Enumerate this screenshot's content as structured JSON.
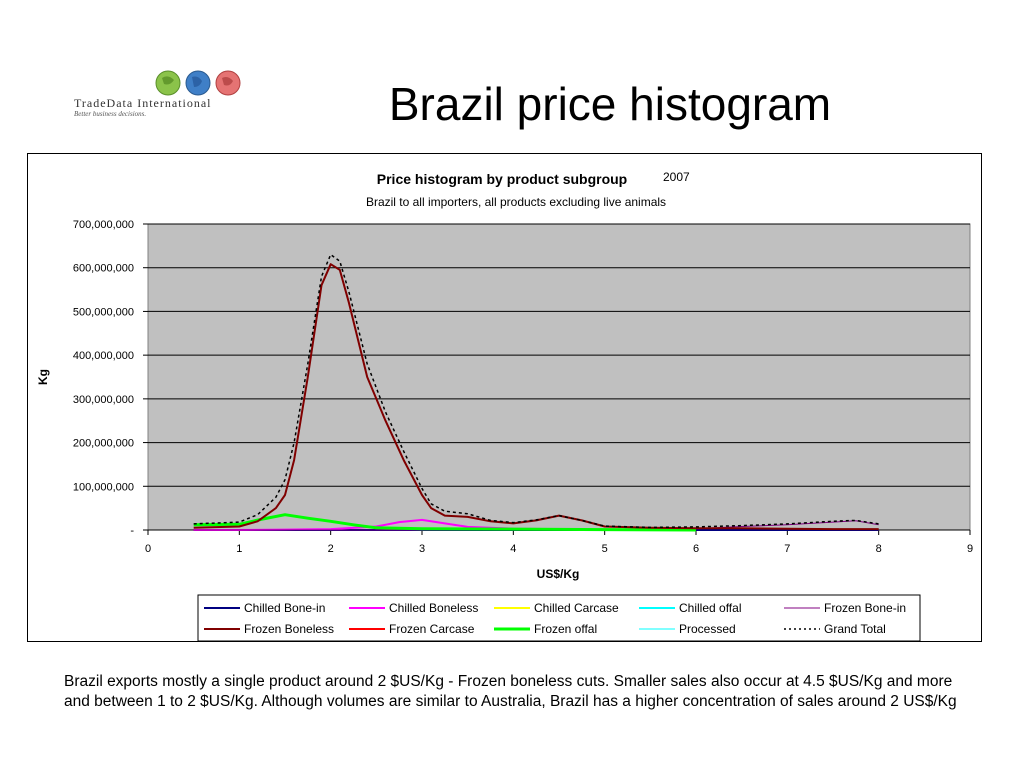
{
  "header": {
    "title": "Brazil price histogram",
    "logo": {
      "name": "TradeData International",
      "tagline": "Better business decisions.",
      "icon": "globe-icon"
    }
  },
  "caption": "Brazil exports mostly a single product around 2 $US/Kg - Frozen boneless cuts.  Smaller sales also occur at 4.5 $US/Kg and more and between 1 to 2 $US/Kg. Although volumes are similar to Australia, Brazil has a higher concentration of sales around 2 US$/Kg",
  "chart_data": {
    "type": "line",
    "title": "Price histogram by product subgroup",
    "year": "2007",
    "subtitle": "Brazil to all importers, all products excluding live animals",
    "xlabel": "US$/Kg",
    "ylabel": "Kg",
    "xlim": [
      0,
      9
    ],
    "ylim": [
      0,
      700000000
    ],
    "xticks": [
      "0",
      "1",
      "2",
      "3",
      "4",
      "5",
      "6",
      "7",
      "8",
      "9"
    ],
    "yticks": [
      "-",
      "100,000,000",
      "200,000,000",
      "300,000,000",
      "400,000,000",
      "500,000,000",
      "600,000,000",
      "700,000,000"
    ],
    "grid": true,
    "legend_position": "bottom",
    "plot_background": "#c0c0c0",
    "series": [
      {
        "name": "Chilled Bone-in",
        "color": "#000080",
        "dash": "",
        "width": 2,
        "points": [
          [
            0.5,
            0
          ],
          [
            1,
            0
          ],
          [
            2,
            0
          ],
          [
            3,
            0
          ],
          [
            4,
            0
          ],
          [
            5,
            0
          ],
          [
            6,
            0
          ],
          [
            7,
            0
          ],
          [
            8,
            0
          ]
        ]
      },
      {
        "name": "Chilled Boneless",
        "color": "#ff00ff",
        "dash": "",
        "width": 2,
        "points": [
          [
            0.5,
            0
          ],
          [
            1,
            0
          ],
          [
            1.5,
            1000000
          ],
          [
            2,
            2000000
          ],
          [
            2.5,
            8000000
          ],
          [
            2.75,
            18000000
          ],
          [
            3,
            23000000
          ],
          [
            3.25,
            15000000
          ],
          [
            3.5,
            7000000
          ],
          [
            4,
            3000000
          ],
          [
            4.5,
            2000000
          ]
        ]
      },
      {
        "name": "Chilled Carcase",
        "color": "#ffff00",
        "dash": "",
        "width": 2,
        "points": [
          [
            0.5,
            0
          ],
          [
            1,
            0
          ],
          [
            2,
            0
          ],
          [
            3,
            0
          ],
          [
            4,
            0
          ],
          [
            5,
            0
          ]
        ]
      },
      {
        "name": "Chilled offal",
        "color": "#00ffff",
        "dash": "",
        "width": 2,
        "points": [
          [
            0.5,
            0
          ],
          [
            1,
            0
          ],
          [
            2,
            0
          ],
          [
            3,
            0
          ],
          [
            4,
            0
          ],
          [
            5,
            0
          ]
        ]
      },
      {
        "name": "Frozen Bone-in",
        "color": "#800080",
        "dash": "",
        "width": 1,
        "points": [
          [
            0.5,
            0
          ],
          [
            2,
            0
          ],
          [
            4,
            0
          ],
          [
            5,
            0
          ],
          [
            6,
            3000000
          ],
          [
            6.5,
            8000000
          ],
          [
            7,
            12000000
          ],
          [
            7.5,
            18000000
          ],
          [
            7.75,
            21000000
          ],
          [
            8,
            12000000
          ]
        ]
      },
      {
        "name": "Frozen Boneless",
        "color": "#800000",
        "dash": "",
        "width": 2,
        "points": [
          [
            0.5,
            5000000
          ],
          [
            1,
            8000000
          ],
          [
            1.2,
            20000000
          ],
          [
            1.4,
            50000000
          ],
          [
            1.5,
            80000000
          ],
          [
            1.6,
            160000000
          ],
          [
            1.75,
            350000000
          ],
          [
            1.9,
            560000000
          ],
          [
            2,
            608000000
          ],
          [
            2.1,
            595000000
          ],
          [
            2.2,
            520000000
          ],
          [
            2.4,
            350000000
          ],
          [
            2.6,
            250000000
          ],
          [
            2.8,
            160000000
          ],
          [
            3,
            80000000
          ],
          [
            3.1,
            50000000
          ],
          [
            3.25,
            33000000
          ],
          [
            3.5,
            30000000
          ],
          [
            3.75,
            20000000
          ],
          [
            4,
            15000000
          ],
          [
            4.25,
            22000000
          ],
          [
            4.5,
            33000000
          ],
          [
            4.75,
            22000000
          ],
          [
            5,
            8000000
          ],
          [
            5.5,
            5000000
          ],
          [
            6,
            4000000
          ],
          [
            6.5,
            4000000
          ],
          [
            7,
            3000000
          ],
          [
            7.5,
            2000000
          ],
          [
            8,
            2000000
          ]
        ]
      },
      {
        "name": "Frozen Carcase",
        "color": "#ff0000",
        "dash": "",
        "width": 2,
        "points": [
          [
            0.5,
            0
          ],
          [
            2,
            0
          ],
          [
            4,
            0
          ],
          [
            6,
            0
          ],
          [
            8,
            0
          ]
        ]
      },
      {
        "name": "Frozen offal",
        "color": "#00ff00",
        "dash": "",
        "width": 3,
        "points": [
          [
            0.5,
            12000000
          ],
          [
            1,
            13000000
          ],
          [
            1.25,
            25000000
          ],
          [
            1.5,
            35000000
          ],
          [
            1.75,
            27000000
          ],
          [
            2,
            20000000
          ],
          [
            2.25,
            12000000
          ],
          [
            2.5,
            5000000
          ],
          [
            3,
            3000000
          ],
          [
            4,
            2000000
          ],
          [
            5,
            1000000
          ],
          [
            6,
            0
          ]
        ]
      },
      {
        "name": "Processed",
        "color": "#00ffff",
        "dash": "",
        "width": 1,
        "points": [
          [
            0.5,
            0
          ],
          [
            2,
            0
          ],
          [
            4,
            0
          ],
          [
            6,
            0
          ],
          [
            8,
            0
          ]
        ]
      },
      {
        "name": "Grand Total",
        "color": "#000000",
        "dash": "3,3",
        "width": 1.5,
        "points": [
          [
            0.5,
            14000000
          ],
          [
            1,
            18000000
          ],
          [
            1.2,
            35000000
          ],
          [
            1.4,
            75000000
          ],
          [
            1.5,
            115000000
          ],
          [
            1.6,
            200000000
          ],
          [
            1.75,
            380000000
          ],
          [
            1.9,
            580000000
          ],
          [
            2,
            630000000
          ],
          [
            2.1,
            615000000
          ],
          [
            2.2,
            545000000
          ],
          [
            2.4,
            380000000
          ],
          [
            2.6,
            270000000
          ],
          [
            2.8,
            180000000
          ],
          [
            3,
            95000000
          ],
          [
            3.1,
            60000000
          ],
          [
            3.25,
            43000000
          ],
          [
            3.5,
            37000000
          ],
          [
            3.75,
            22000000
          ],
          [
            4,
            17000000
          ],
          [
            4.25,
            23000000
          ],
          [
            4.5,
            33000000
          ],
          [
            4.75,
            22000000
          ],
          [
            5,
            9000000
          ],
          [
            5.5,
            6000000
          ],
          [
            6,
            7000000
          ],
          [
            6.5,
            10000000
          ],
          [
            7,
            14000000
          ],
          [
            7.5,
            20000000
          ],
          [
            7.75,
            22000000
          ],
          [
            8,
            14000000
          ]
        ]
      }
    ]
  }
}
